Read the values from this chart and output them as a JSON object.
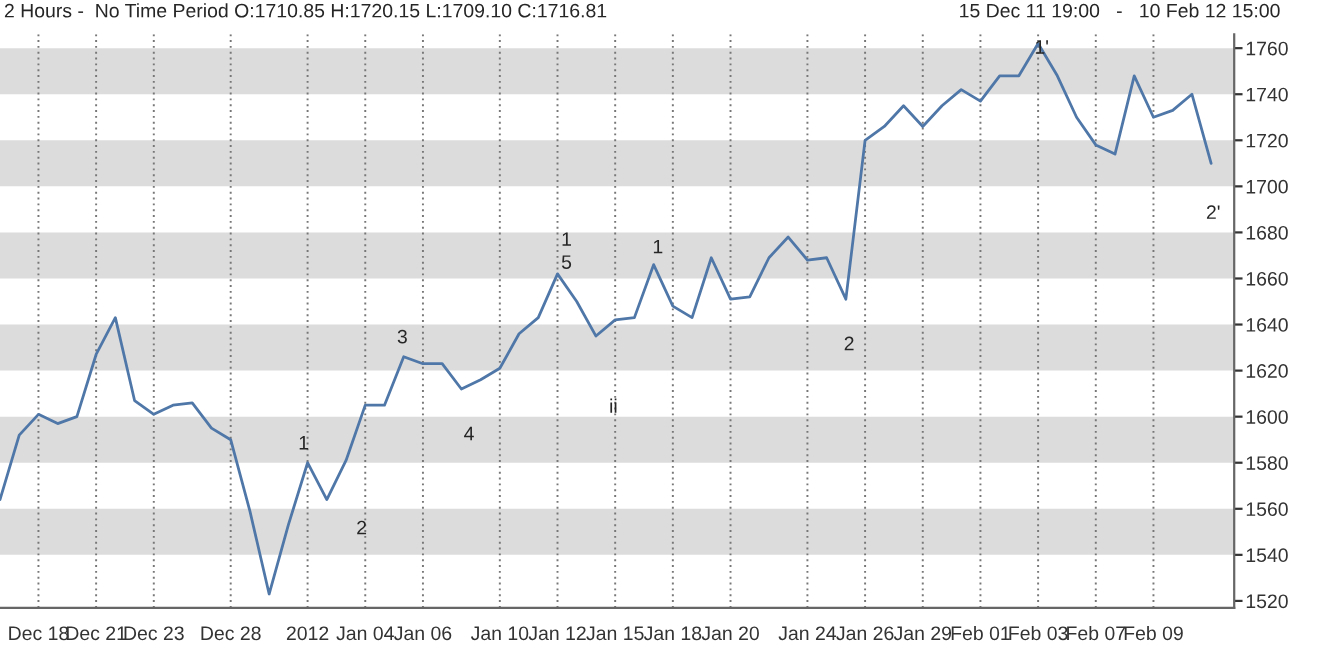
{
  "chart_data": {
    "type": "line",
    "title": "2 Hours -  No Time Period O:1710.85 H:1720.15 L:1709.10 C:1716.81",
    "annotations": [
      "15 Dec 11 19:00   -   10 Feb 12 15:00",
      "1",
      "2",
      "3",
      "4",
      "ii",
      "1",
      "5",
      "1",
      "2",
      "1'",
      "2'"
    ],
    "categories": [
      null,
      null,
      "Dec 18",
      null,
      null,
      "Dec 21",
      null,
      null,
      "Dec 23",
      null,
      null,
      null,
      "Dec 28",
      null,
      null,
      null,
      "2012",
      null,
      null,
      "Jan 04",
      null,
      null,
      "Jan 06",
      null,
      null,
      null,
      "Jan 10",
      null,
      null,
      "Jan 12",
      null,
      null,
      "Jan 15",
      null,
      null,
      "Jan 18",
      null,
      null,
      "Jan 20",
      null,
      null,
      null,
      "Jan 24",
      null,
      null,
      "Jan 26",
      null,
      null,
      "Jan 29",
      null,
      null,
      "Feb 01",
      null,
      null,
      "Feb 03",
      null,
      null,
      "Feb 07",
      null,
      null,
      "Feb 09",
      null,
      null,
      null
    ],
    "series": [
      {
        "color": "#4f77a8",
        "values": [
          1564,
          1592,
          1601,
          1597,
          1600,
          1627,
          1643,
          1607,
          1601,
          1605,
          1606,
          1595,
          1590,
          1559,
          1523,
          1553,
          1580,
          1564,
          1581,
          1605,
          1605,
          1626,
          1623,
          1623,
          1612,
          1616,
          1621,
          1636,
          1643,
          1662,
          1650,
          1635,
          1642,
          1643,
          1666,
          1648,
          1643,
          1669,
          1651,
          1652,
          1669,
          1678,
          1668,
          1669,
          1651,
          1720,
          1726,
          1735,
          1726,
          1735,
          1742,
          1737,
          1748,
          1748,
          1762,
          1748,
          1730,
          1718,
          1714,
          1748,
          1730,
          1733,
          1740,
          1710
        ]
      }
    ],
    "ylim": [
      1517,
      1766
    ],
    "yticks": [
      1520,
      1540,
      1560,
      1580,
      1600,
      1620,
      1640,
      1660,
      1680,
      1700,
      1720,
      1740,
      1760
    ],
    "bands": [
      {
        "axis": "y",
        "from": 1540,
        "to": 1560,
        "color": "#dcdcdc"
      },
      {
        "axis": "y",
        "from": 1580,
        "to": 1600,
        "color": "#dcdcdc"
      },
      {
        "axis": "y",
        "from": 1620,
        "to": 1640,
        "color": "#dcdcdc"
      },
      {
        "axis": "y",
        "from": 1660,
        "to": 1680,
        "color": "#dcdcdc"
      },
      {
        "axis": "y",
        "from": 1700,
        "to": 1720,
        "color": "#dcdcdc"
      },
      {
        "axis": "y",
        "from": 1740,
        "to": 1760,
        "color": "#dcdcdc"
      }
    ],
    "grid": "x",
    "marker": "none",
    "line_style": "solid"
  }
}
